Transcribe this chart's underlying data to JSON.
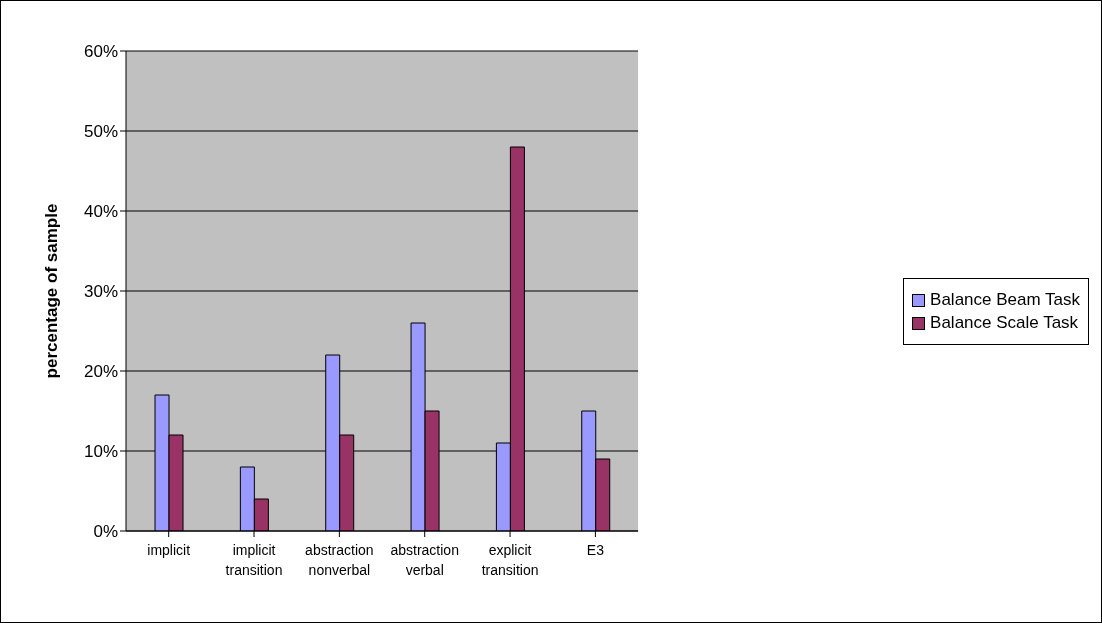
{
  "chart_data": {
    "type": "bar",
    "categories": [
      "implicit",
      "implicit transition",
      "abstraction nonverbal",
      "abstraction verbal",
      "explicit transition",
      "E3"
    ],
    "series": [
      {
        "name": "Balance Beam Task",
        "color": "#9999ff",
        "values": [
          17,
          8,
          22,
          26,
          11,
          15
        ]
      },
      {
        "name": "Balance Scale Task",
        "color": "#993366",
        "values": [
          12,
          4,
          12,
          15,
          48,
          9
        ]
      }
    ],
    "ylabel": "percentage of sample",
    "ylim": [
      0,
      60
    ],
    "yticks": [
      {
        "value": 0,
        "label": "0%"
      },
      {
        "value": 10,
        "label": "10%"
      },
      {
        "value": 20,
        "label": "20%"
      },
      {
        "value": 30,
        "label": "30%"
      },
      {
        "value": 40,
        "label": "40%"
      },
      {
        "value": 50,
        "label": "50%"
      },
      {
        "value": 60,
        "label": "60%"
      }
    ],
    "grid": "y",
    "legend": "right"
  }
}
